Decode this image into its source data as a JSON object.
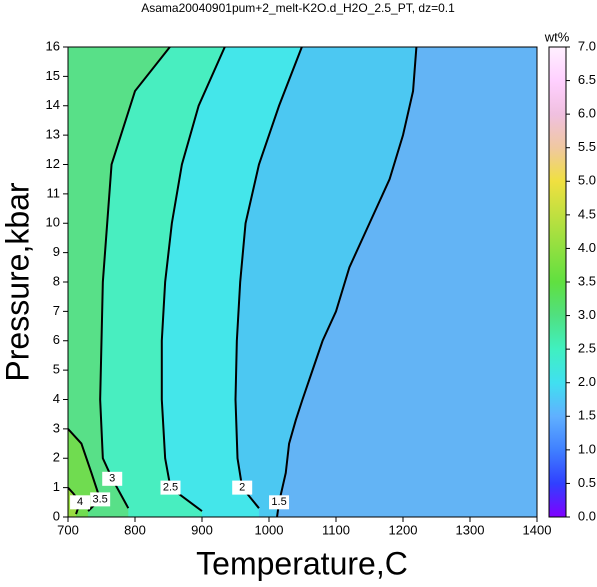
{
  "chart_data": {
    "type": "contour",
    "title": "Asama20040901pum+2_melt-K2O.d_H2O_2.5_PT, dz=0.1",
    "x_label": "Temperature,C",
    "y_label": "Pressure,kbar",
    "xlim": [
      700,
      1400
    ],
    "xticks": [
      700,
      800,
      900,
      1000,
      1100,
      1200,
      1300,
      1400
    ],
    "ylim": [
      0,
      16
    ],
    "yticks": [
      0,
      1,
      2,
      3,
      4,
      5,
      6,
      7,
      8,
      9,
      10,
      11,
      12,
      13,
      14,
      15,
      16
    ],
    "background": "#63b4f5",
    "contours": [
      {
        "level": 1.5,
        "fill": "#4cc8f2",
        "x": [
          1012,
          1015,
          1025,
          1030,
          1040,
          1050,
          1065,
          1080,
          1100,
          1120,
          1150,
          1180,
          1200,
          1215,
          1220
        ],
        "y": [
          0,
          0.5,
          1.5,
          2.5,
          3.3,
          4,
          5,
          6,
          7,
          8.5,
          10,
          11.5,
          13,
          14.5,
          16
        ]
      },
      {
        "level": 2,
        "fill": "#44e6ea",
        "x": [
          985,
          960,
          953,
          950,
          952,
          957,
          965,
          985,
          1015,
          1049
        ],
        "y": [
          0.3,
          1,
          2,
          4,
          6,
          8,
          10,
          12,
          14,
          16
        ]
      },
      {
        "level": 2.5,
        "fill": "#48eec0",
        "x": [
          900,
          853,
          845,
          840,
          840,
          845,
          855,
          870,
          895,
          934
        ],
        "y": [
          0.2,
          1,
          2,
          4,
          6,
          8,
          10,
          12,
          14,
          16
        ]
      },
      {
        "level": 3,
        "fill": "#58e088",
        "x": [
          790,
          766,
          752,
          748,
          752,
          765,
          800,
          852
        ],
        "y": [
          0.3,
          1.3,
          2,
          4,
          8,
          12,
          14.5,
          16
        ]
      },
      {
        "level": 3.5,
        "fill": "#70dc50",
        "x": [
          730,
          748,
          735,
          720,
          700
        ],
        "y": [
          0.2,
          0.6,
          1.5,
          2.5,
          3
        ]
      },
      {
        "level": 4,
        "fill": "#98dc40",
        "x": [
          712,
          718,
          708,
          700
        ],
        "y": [
          0.1,
          0.5,
          0.8,
          1
        ]
      }
    ],
    "colorbar": {
      "label": "wt%",
      "lim": [
        0,
        7
      ],
      "colormap": [
        "#8000ff",
        "#3040ff",
        "#4080ff",
        "#60b0ff",
        "#40e0f0",
        "#40f0c0",
        "#50e080",
        "#60e040",
        "#90e040",
        "#c0e040",
        "#f0e040",
        "#f0c8a0",
        "#f0c0e0",
        "#ffd0ff",
        "#fff0ff"
      ],
      "ticks": [
        {
          "value": 0,
          "label": "0.0"
        },
        {
          "value": 0.5,
          "label": "0.5"
        },
        {
          "value": 1,
          "label": "1.0"
        },
        {
          "value": 1.5,
          "label": "1.5"
        },
        {
          "value": 2,
          "label": "2.0"
        },
        {
          "value": 2.5,
          "label": "2.5"
        },
        {
          "value": 3,
          "label": "3.0"
        },
        {
          "value": 3.5,
          "label": "3.5"
        },
        {
          "value": 4,
          "label": "4.0"
        },
        {
          "value": 4.5,
          "label": "4.5"
        },
        {
          "value": 5,
          "label": "5.0"
        },
        {
          "value": 5.5,
          "label": "5.5"
        },
        {
          "value": 6,
          "label": "6.0"
        },
        {
          "value": 6.5,
          "label": "6.5"
        },
        {
          "value": 7,
          "label": "7.0"
        }
      ]
    }
  }
}
